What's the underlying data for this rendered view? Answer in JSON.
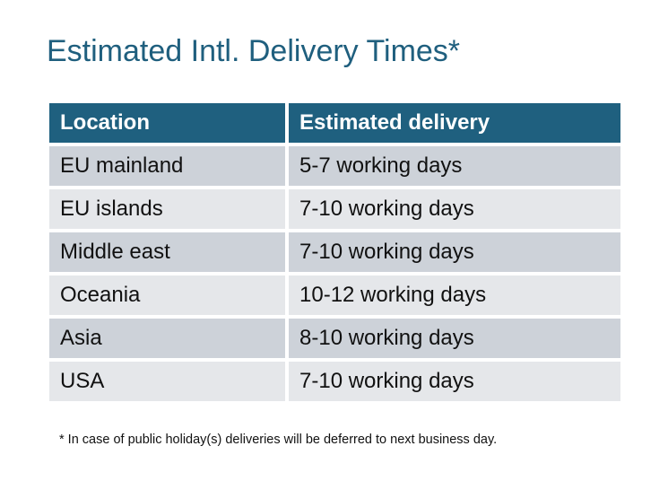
{
  "title": "Estimated Intl. Delivery Times*",
  "table": {
    "headers": [
      "Location",
      "Estimated delivery"
    ],
    "rows": [
      [
        "EU mainland",
        "5-7 working days"
      ],
      [
        "EU islands",
        "7-10 working days"
      ],
      [
        "Middle east",
        "7-10 working days"
      ],
      [
        "Oceania",
        "10-12 working days"
      ],
      [
        "Asia",
        "8-10 working days"
      ],
      [
        "USA",
        "7-10 working days"
      ]
    ]
  },
  "footnote": "* In case of public holiday(s) deliveries will be deferred to next business day.",
  "colors": {
    "header": "#1f607f",
    "row_odd": "#cdd2d9",
    "row_even": "#e5e7ea",
    "title": "#1f5f7e"
  }
}
